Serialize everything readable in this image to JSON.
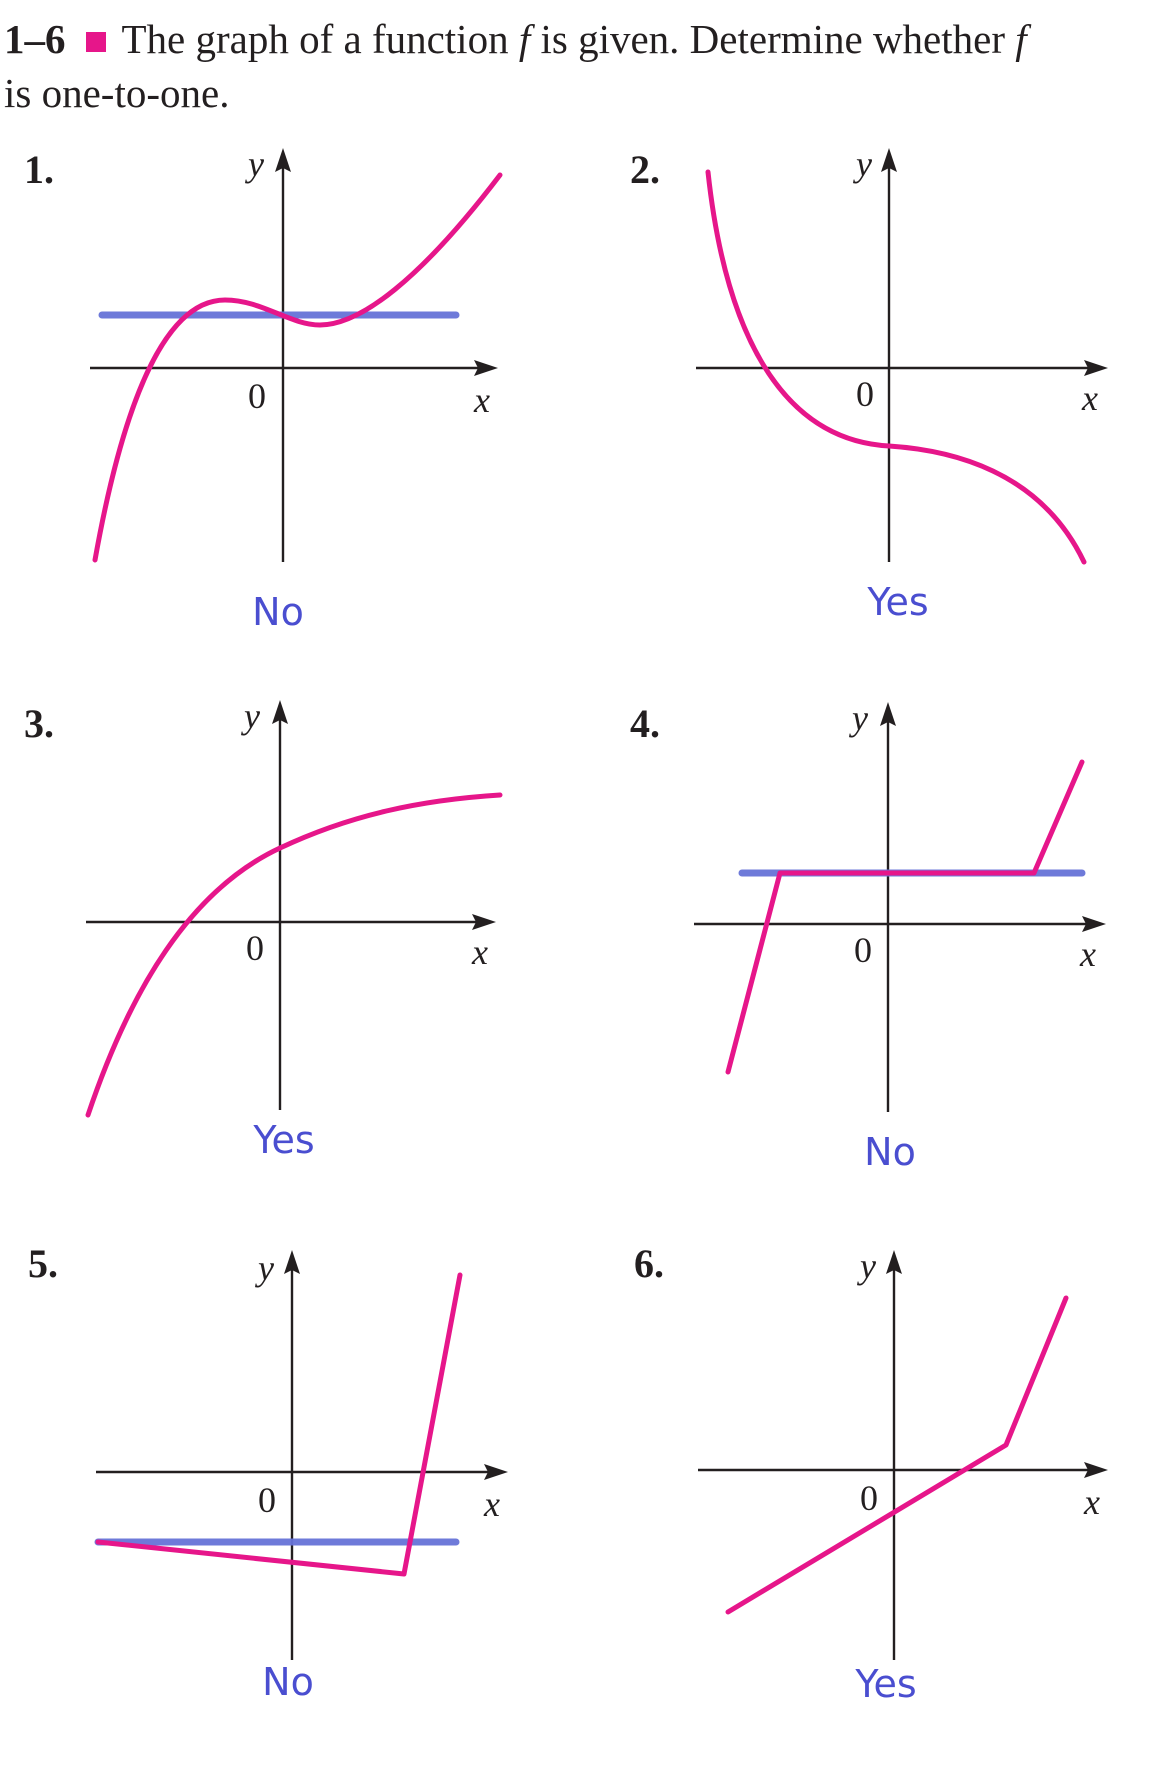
{
  "header": {
    "range": "1–6",
    "text_a": "The graph of a function",
    "func": "f",
    "text_b": "is given. Determine whether",
    "func2": "f",
    "text_c": "is one-to-one."
  },
  "axis_labels": {
    "x": "x",
    "y": "y",
    "origin": "0"
  },
  "problems": [
    {
      "number": "1.",
      "answer": "No"
    },
    {
      "number": "2.",
      "answer": "Yes"
    },
    {
      "number": "3.",
      "answer": "Yes"
    },
    {
      "number": "4.",
      "answer": "No"
    },
    {
      "number": "5.",
      "answer": "No"
    },
    {
      "number": "6.",
      "answer": "Yes"
    }
  ],
  "colors": {
    "curve": "#e6168a",
    "test_line": "#6773d8",
    "answer": "#4a4ed0",
    "square": "#e6168a"
  }
}
